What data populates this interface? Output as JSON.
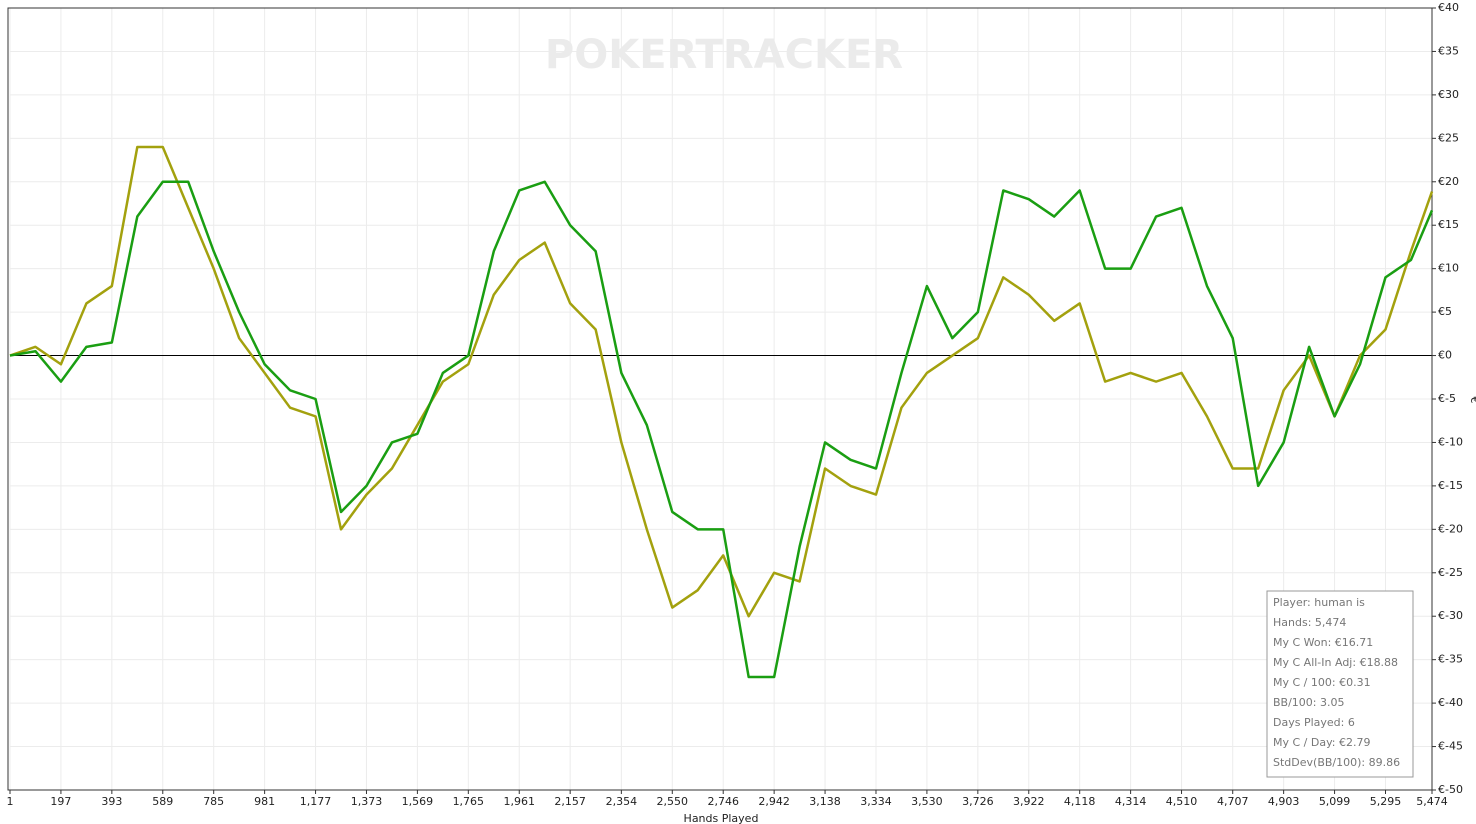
{
  "chart_data": {
    "type": "line",
    "watermark": "POKERTRACKER",
    "x_label": "Hands Played",
    "y_label": "€",
    "x": [
      1,
      99,
      197,
      295,
      393,
      491,
      589,
      687,
      785,
      883,
      981,
      1079,
      1177,
      1275,
      1373,
      1471,
      1569,
      1667,
      1765,
      1863,
      1961,
      2059,
      2157,
      2255,
      2354,
      2452,
      2550,
      2648,
      2746,
      2844,
      2942,
      3040,
      3138,
      3236,
      3334,
      3432,
      3530,
      3628,
      3726,
      3824,
      3922,
      4020,
      4118,
      4216,
      4314,
      4412,
      4510,
      4608,
      4707,
      4805,
      4903,
      5001,
      5099,
      5197,
      5295,
      5393,
      5474
    ],
    "series": [
      {
        "color": "#a3a10e",
        "values": [
          0,
          1,
          -1,
          6,
          8,
          24,
          24,
          17,
          10,
          2,
          -2,
          -6,
          -7,
          -20,
          -16,
          -13,
          -8,
          -3,
          -1,
          7,
          11,
          13,
          6,
          3,
          -10,
          -20,
          -29,
          -27,
          -23,
          -30,
          -25,
          -26,
          -13,
          -15,
          -16,
          -6,
          -2,
          0,
          2,
          9,
          7,
          4,
          6,
          -3,
          -2,
          -3,
          -2,
          -7,
          -13,
          -13,
          -4,
          0,
          -7,
          0,
          3,
          12,
          18.88
        ]
      },
      {
        "color": "#1a9e12",
        "values": [
          0,
          0.5,
          -3,
          1,
          1.5,
          16,
          20,
          20,
          12,
          5,
          -1,
          -4,
          -5,
          -18,
          -15,
          -10,
          -9,
          -2,
          0,
          12,
          19,
          20,
          15,
          12,
          -2,
          -8,
          -18,
          -20,
          -20,
          -37,
          -37,
          -22,
          -10,
          -12,
          -13,
          -2,
          8,
          2,
          5,
          19,
          18,
          16,
          19,
          10,
          10,
          16,
          17,
          8,
          2,
          -15,
          -10,
          1,
          -7,
          -1,
          9,
          11,
          16.71
        ]
      }
    ],
    "xlim": [
      1,
      5474
    ],
    "ylim": [
      -50,
      40
    ],
    "xticks": [
      1,
      197,
      393,
      589,
      785,
      981,
      {
        "value": 1177,
        "label": "1,177"
      },
      {
        "value": 1373,
        "label": "1,373"
      },
      {
        "value": 1569,
        "label": "1,569"
      },
      {
        "value": 1765,
        "label": "1,765"
      },
      {
        "value": 1961,
        "label": "1,961"
      },
      {
        "value": 2157,
        "label": "2,157"
      },
      {
        "value": 2354,
        "label": "2,354"
      },
      {
        "value": 2550,
        "label": "2,550"
      },
      {
        "value": 2746,
        "label": "2,746"
      },
      {
        "value": 2942,
        "label": "2,942"
      },
      {
        "value": 3138,
        "label": "3,138"
      },
      {
        "value": 3334,
        "label": "3,334"
      },
      {
        "value": 3530,
        "label": "3,530"
      },
      {
        "value": 3726,
        "label": "3,726"
      },
      {
        "value": 3922,
        "label": "3,922"
      },
      {
        "value": 4118,
        "label": "4,118"
      },
      {
        "value": 4314,
        "label": "4,314"
      },
      {
        "value": 4510,
        "label": "4,510"
      },
      {
        "value": 4707,
        "label": "4,707"
      },
      {
        "value": 4903,
        "label": "4,903"
      },
      {
        "value": 5099,
        "label": "5,099"
      },
      {
        "value": 5295,
        "label": "5,295"
      },
      {
        "value": 5474,
        "label": "5,474"
      }
    ],
    "yticks": [
      {
        "value": 40,
        "label": "€40"
      },
      {
        "value": 35,
        "label": "€35"
      },
      {
        "value": 30,
        "label": "€30"
      },
      {
        "value": 25,
        "label": "€25"
      },
      {
        "value": 20,
        "label": "€20"
      },
      {
        "value": 15,
        "label": "€15"
      },
      {
        "value": 10,
        "label": "€10"
      },
      {
        "value": 5,
        "label": "€5"
      },
      {
        "value": 0,
        "label": "€0"
      },
      {
        "value": -5,
        "label": "€-5"
      },
      {
        "value": -10,
        "label": "€-10"
      },
      {
        "value": -15,
        "label": "€-15"
      },
      {
        "value": -20,
        "label": "€-20"
      },
      {
        "value": -25,
        "label": "€-25"
      },
      {
        "value": -30,
        "label": "€-30"
      },
      {
        "value": -35,
        "label": "€-35"
      },
      {
        "value": -40,
        "label": "€-40"
      },
      {
        "value": -45,
        "label": "€-45"
      },
      {
        "value": -50,
        "label": "€-50"
      }
    ],
    "grid": true,
    "stats_box": [
      "Player: human is",
      "Hands: 5,474",
      "My C Won: €16.71",
      "My C All-In Adj: €18.88",
      "My C / 100: €0.31",
      "BB/100: 3.05",
      "Days Played: 6",
      "My C / Day: €2.79",
      "StdDev(BB/100): 89.86"
    ]
  }
}
